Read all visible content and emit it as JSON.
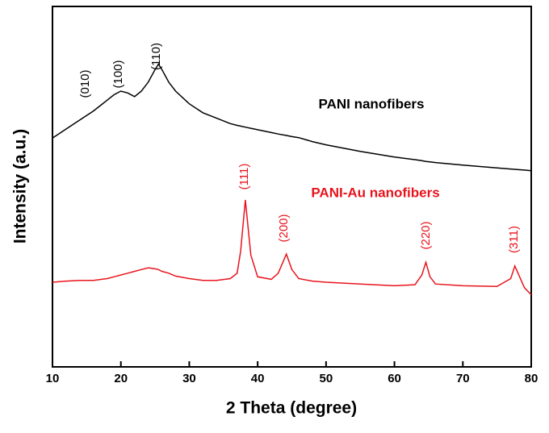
{
  "chart_data": {
    "type": "line",
    "x_label": "2 Theta (degree)",
    "y_label": "Intensity (a.u.)",
    "x": [
      10,
      12,
      14,
      16,
      18,
      19,
      20,
      21,
      22,
      23,
      24,
      25,
      25.5,
      26,
      27,
      28,
      30,
      32,
      34,
      36,
      37,
      37.5,
      38.2,
      39,
      40,
      42,
      43,
      44.2,
      45,
      46,
      48,
      50,
      55,
      60,
      63,
      64,
      64.6,
      65.2,
      66,
      70,
      75,
      77,
      77.6,
      78.3,
      79,
      80
    ],
    "series": [
      {
        "name": "PANI nanofibers",
        "color": "#000000",
        "values": [
          63.5,
          66,
          68.5,
          71,
          74,
          75.5,
          76.5,
          76,
          75,
          76.5,
          79,
          82.5,
          84,
          82.5,
          79,
          76.5,
          73,
          70.5,
          69,
          67.5,
          67,
          66.8,
          66.5,
          66.2,
          65.8,
          65,
          64.6,
          64.2,
          63.9,
          63.6,
          62.5,
          61.6,
          59.8,
          58.2,
          57.5,
          57.2,
          57,
          56.9,
          56.7,
          56,
          55.2,
          54.9,
          54.8,
          54.7,
          54.6,
          54.4
        ]
      },
      {
        "name": "PANI-Au nanofibers",
        "color": "#e8141c",
        "values": [
          23.5,
          23.8,
          24,
          24,
          24.5,
          25,
          25.5,
          26,
          26.5,
          27,
          27.5,
          27.2,
          27,
          26.5,
          26,
          25.2,
          24.5,
          24,
          24,
          24.5,
          26,
          32,
          46.3,
          31,
          25,
          24.3,
          26,
          31.3,
          27,
          24.5,
          23.8,
          23.5,
          23,
          22.5,
          22.8,
          25.5,
          29,
          25,
          23,
          22.5,
          22.3,
          24.5,
          28,
          25,
          22,
          20
        ]
      }
    ],
    "annotations": [
      "(010)",
      "(100)",
      "(110)",
      "(111)",
      "(200)",
      "(220)",
      "(311)"
    ],
    "xlim": [
      10,
      80
    ],
    "xticks": [
      10,
      20,
      30,
      40,
      50,
      60,
      70,
      80
    ],
    "ylim": [
      0,
      100
    ]
  }
}
